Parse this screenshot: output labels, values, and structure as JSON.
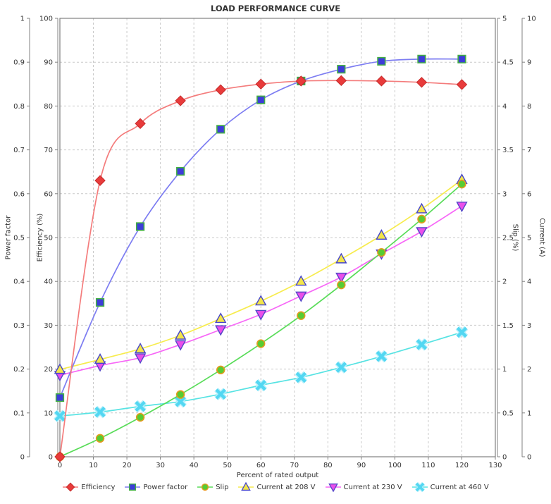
{
  "chart": {
    "title": "LOAD PERFORMANCE CURVE",
    "x_axis": {
      "label": "Percent of rated output",
      "min": 0,
      "max": 130,
      "tick_labels": [
        "0",
        "10",
        "20",
        "30",
        "40",
        "50",
        "60",
        "70",
        "80",
        "90",
        "100",
        "110",
        "120",
        "130"
      ]
    },
    "left_axes": [
      {
        "id": "pf",
        "label": "Power factor",
        "min": 0,
        "max": 1,
        "tick_labels": [
          "0",
          "0.1",
          "0.2",
          "0.3",
          "0.4",
          "0.5",
          "0.6",
          "0.7",
          "0.8",
          "0.9",
          "1"
        ]
      },
      {
        "id": "eff",
        "label": "Efficiency (%)",
        "min": 0,
        "max": 100,
        "tick_labels": [
          "0",
          "10",
          "20",
          "30",
          "40",
          "50",
          "60",
          "70",
          "80",
          "90",
          "100"
        ]
      }
    ],
    "right_axes": [
      {
        "id": "slip",
        "label": "Slip (%)",
        "min": 0,
        "max": 5,
        "tick_labels": [
          "0",
          "0.5",
          "1",
          "1.5",
          "2",
          "2.5",
          "3",
          "3.5",
          "4",
          "4.5",
          "5"
        ]
      },
      {
        "id": "cur",
        "label": "Current (A)",
        "min": 0,
        "max": 10,
        "tick_labels": [
          "0",
          "1",
          "2",
          "3",
          "4",
          "5",
          "6",
          "7",
          "8",
          "9",
          "10"
        ]
      }
    ],
    "colors": {
      "grid": "#c9c9c9",
      "axis": "#808080",
      "text": "#333333"
    }
  },
  "chart_data": {
    "type": "line",
    "title": "LOAD PERFORMANCE CURVE",
    "xlabel": "Percent of rated output",
    "xlim": [
      0,
      130
    ],
    "grid": true,
    "legend_position": "bottom",
    "x": [
      0,
      12,
      24,
      36,
      48,
      60,
      72,
      84,
      96,
      108,
      120
    ],
    "series": [
      {
        "name": "Efficiency",
        "axis": "eff",
        "axis_label": "Efficiency (%)",
        "marker": "diamond",
        "line_color": "#f47c7c",
        "marker_fill": "#e83b3b",
        "marker_stroke": "#c62b2b",
        "values": [
          0,
          63,
          76,
          81.2,
          83.7,
          85,
          85.7,
          85.8,
          85.7,
          85.4,
          84.9
        ]
      },
      {
        "name": "Power factor",
        "axis": "pf",
        "axis_label": "Power factor",
        "marker": "square",
        "line_color": "#7d7df2",
        "marker_fill": "#3d3dd8",
        "marker_stroke": "#44b044",
        "values": [
          0.135,
          0.352,
          0.525,
          0.651,
          0.747,
          0.814,
          0.857,
          0.884,
          0.902,
          0.907,
          0.907
        ]
      },
      {
        "name": "Slip",
        "axis": "slip",
        "axis_label": "Slip (%)",
        "marker": "circle",
        "line_color": "#58dc58",
        "marker_fill": "#57cc33",
        "marker_stroke": "#e69a1f",
        "values": [
          0,
          0.21,
          0.45,
          0.71,
          0.99,
          1.29,
          1.61,
          1.96,
          2.33,
          2.71,
          3.11
        ]
      },
      {
        "name": "Current at 208 V",
        "axis": "cur",
        "axis_label": "Current (A)",
        "marker": "triangle-up",
        "line_color": "#f7ec4e",
        "marker_fill": "#f2e54a",
        "marker_stroke": "#4545cc",
        "values": [
          1.99,
          2.22,
          2.46,
          2.77,
          3.15,
          3.55,
          4.0,
          4.51,
          5.05,
          5.65,
          6.32
        ]
      },
      {
        "name": "Current at 230 V",
        "axis": "cur",
        "axis_label": "Current (A)",
        "marker": "triangle-down",
        "line_color": "#f767f7",
        "marker_fill": "#ea4fea",
        "marker_stroke": "#5447c9",
        "values": [
          1.86,
          2.08,
          2.26,
          2.56,
          2.9,
          3.25,
          3.67,
          4.1,
          4.63,
          5.14,
          5.72
        ]
      },
      {
        "name": "Current at 460 V",
        "axis": "cur",
        "axis_label": "Current (A)",
        "marker": "x-cross",
        "line_color": "#57e3e3",
        "marker_fill": "#53d7f2",
        "marker_stroke": "#b6f0fb",
        "values": [
          0.93,
          1.02,
          1.15,
          1.26,
          1.43,
          1.63,
          1.81,
          2.04,
          2.29,
          2.56,
          2.84
        ]
      }
    ]
  }
}
